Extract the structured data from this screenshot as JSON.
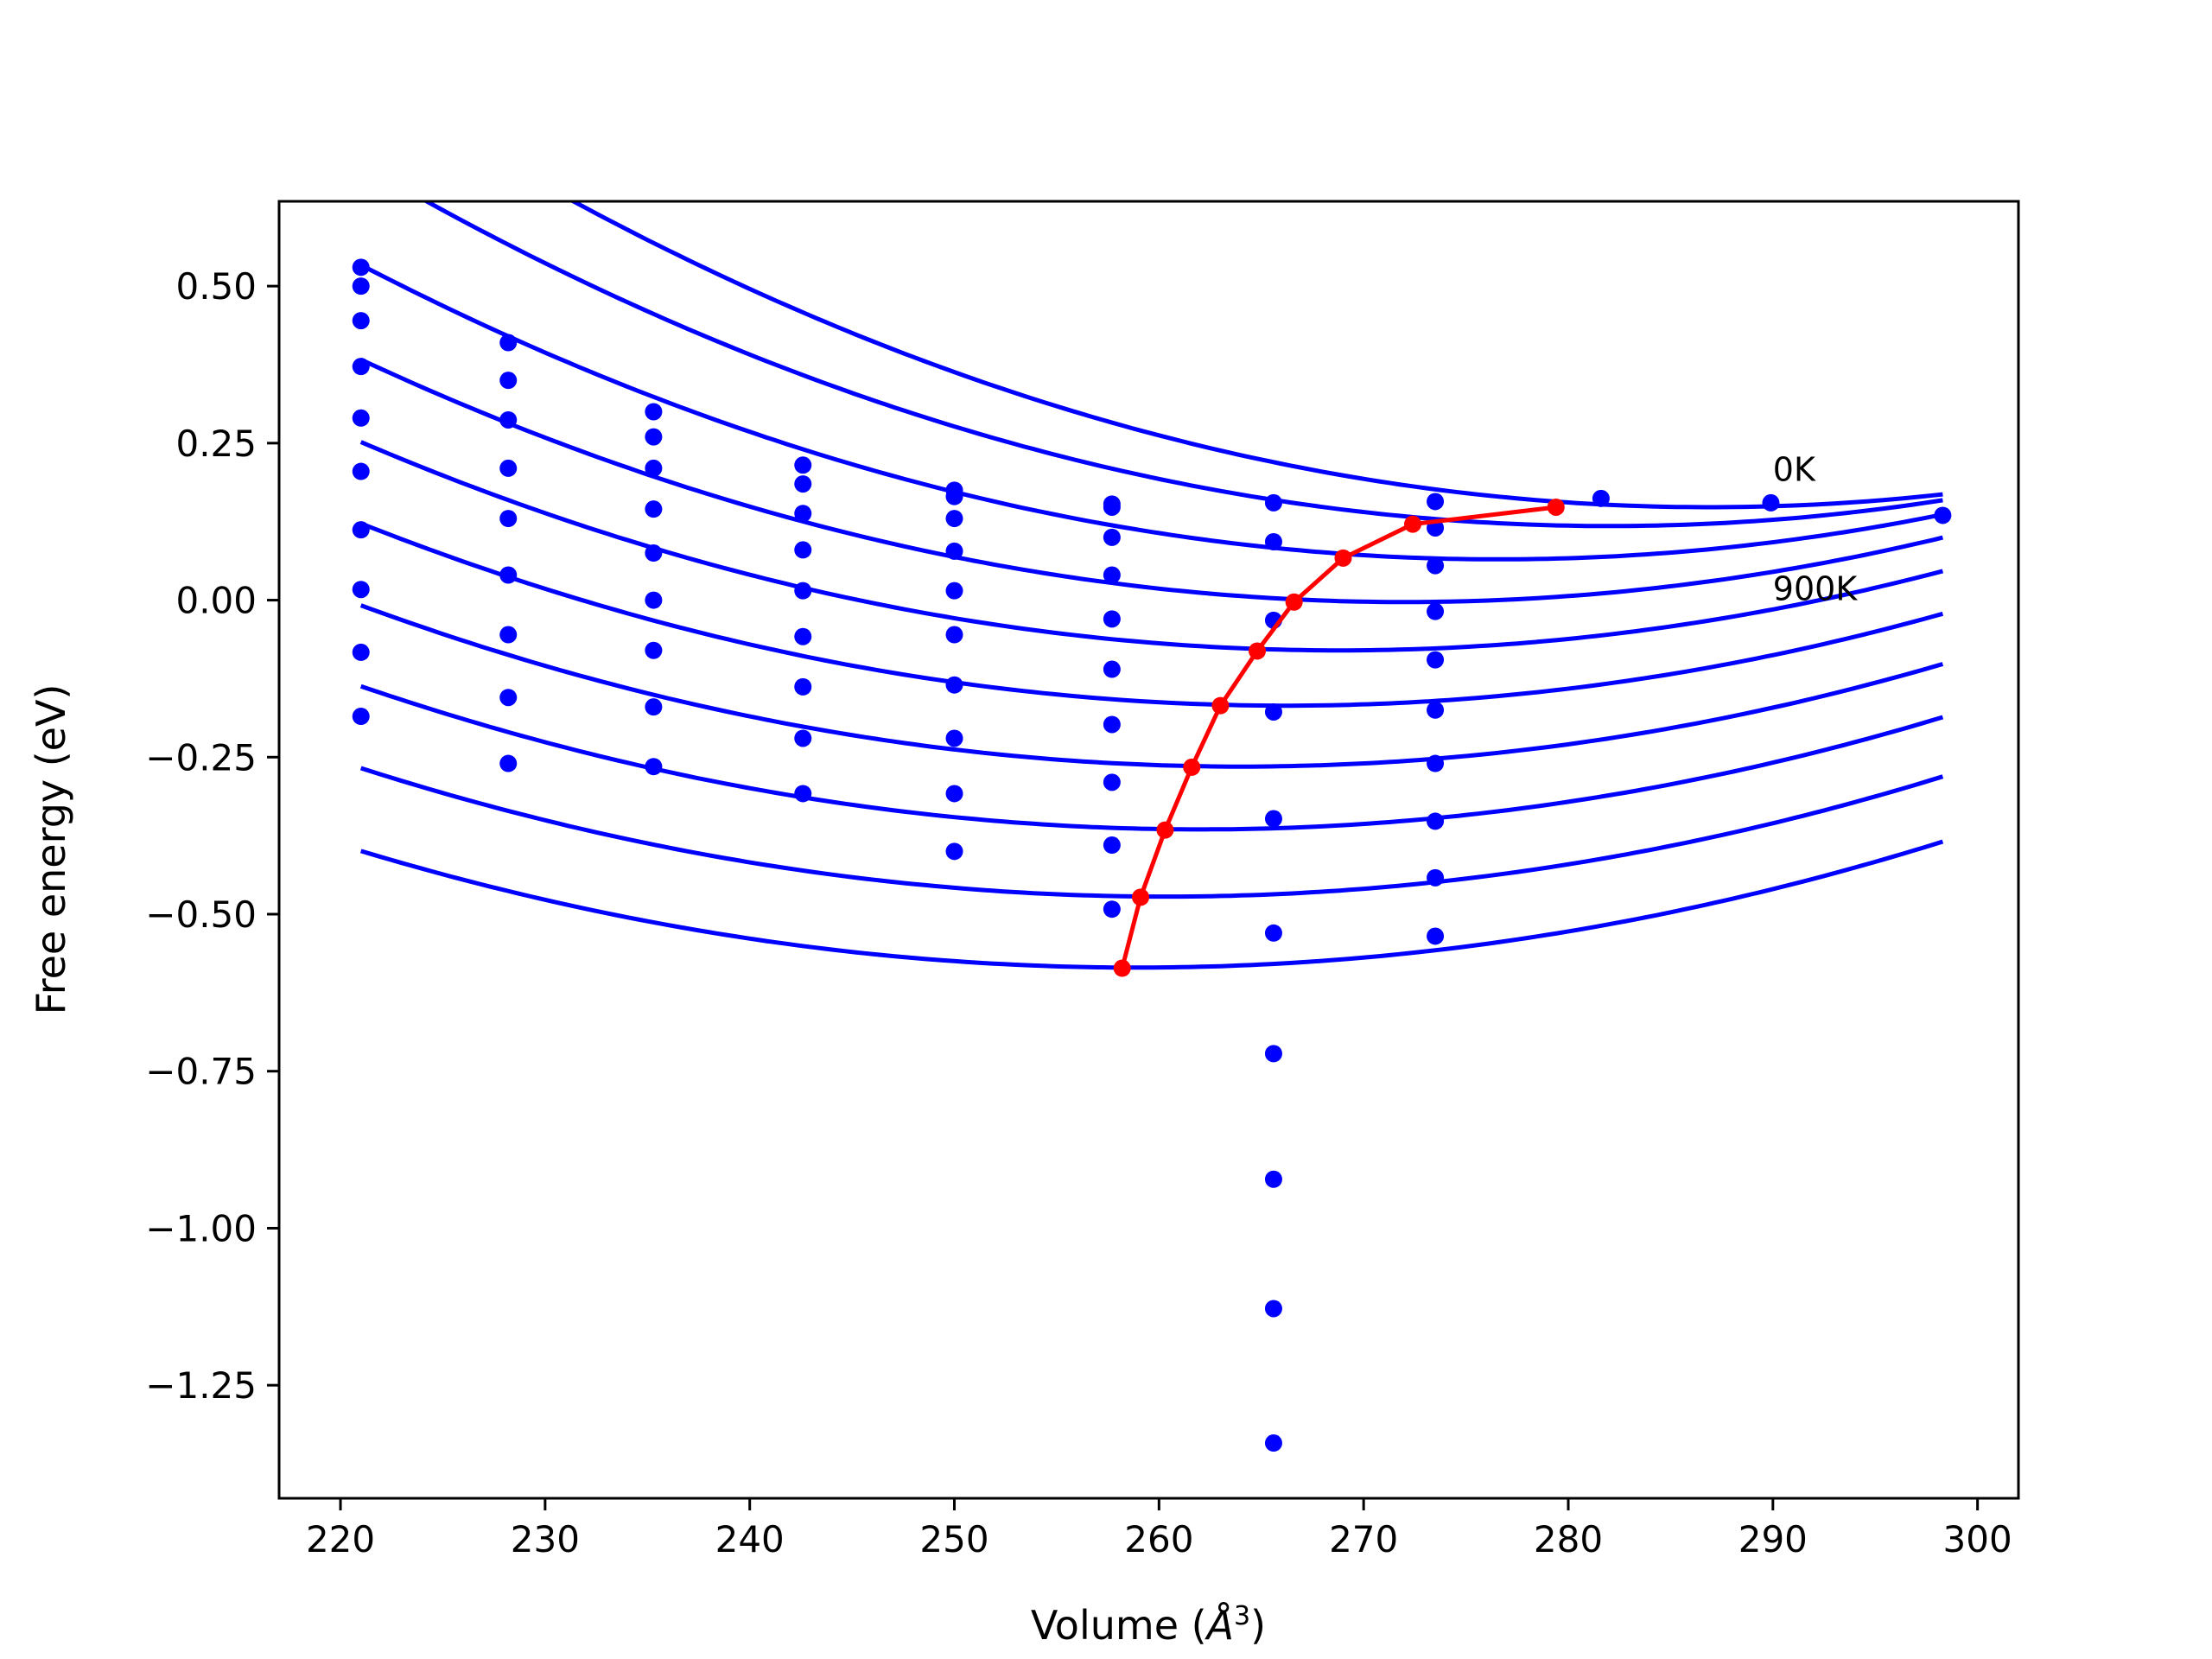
{
  "chart_data": {
    "type": "scatter",
    "xlabel_main": "Volume (",
    "xlabel_symbol": "Å",
    "xlabel_exp": "3",
    "xlabel_end": ")",
    "ylabel": "Free energy (eV)",
    "xlim": [
      217,
      302
    ],
    "ylim": [
      -1.43,
      0.635
    ],
    "xticks": [
      220,
      230,
      240,
      250,
      260,
      270,
      280,
      290,
      300
    ],
    "yticks": [
      0.5,
      0.25,
      0.0,
      -0.25,
      -0.5,
      -0.75,
      -1.0,
      -1.25
    ],
    "ytick_labels": [
      "0.50",
      "0.25",
      "0.00",
      "−0.25",
      "−0.50",
      "−0.75",
      "−1.00",
      "−1.25"
    ],
    "annotations": [
      {
        "text": "0K",
        "x": 290,
        "y": 0.19
      },
      {
        "text": "900K",
        "x": 290,
        "y": 0.0
      }
    ],
    "colors": {
      "fit": "#0000ff",
      "points": "#0000ff",
      "minima": "#ff0000"
    },
    "fit_x_range": [
      221,
      298.3
    ],
    "fit_curves": [
      {
        "a": 0.000158,
        "v0": 286.9,
        "e0": 0.148
      },
      {
        "a": 0.0001548,
        "v0": 282.0,
        "e0": 0.118
      },
      {
        "a": 0.0001516,
        "v0": 276.6,
        "e0": 0.065
      },
      {
        "a": 0.0001484,
        "v0": 272.0,
        "e0": -0.003
      },
      {
        "a": 0.0001452,
        "v0": 268.8,
        "e0": -0.08
      },
      {
        "a": 0.000142,
        "v0": 266.2,
        "e0": -0.168
      },
      {
        "a": 0.0001388,
        "v0": 264.0,
        "e0": -0.265
      },
      {
        "a": 0.0001356,
        "v0": 262.0,
        "e0": -0.365
      },
      {
        "a": 0.0001324,
        "v0": 260.3,
        "e0": -0.472
      },
      {
        "a": 0.0001292,
        "v0": 258.9,
        "e0": -0.585
      }
    ],
    "scatter_points": [
      [
        221,
        0.53
      ],
      [
        221,
        0.5
      ],
      [
        221,
        0.445
      ],
      [
        221,
        0.372
      ],
      [
        221,
        0.29
      ],
      [
        221,
        0.205
      ],
      [
        221,
        0.112
      ],
      [
        221,
        0.017
      ],
      [
        221,
        -0.083
      ],
      [
        221,
        -0.185
      ],
      [
        228.2,
        0.41
      ],
      [
        228.2,
        0.35
      ],
      [
        228.2,
        0.287
      ],
      [
        228.2,
        0.21
      ],
      [
        228.2,
        0.13
      ],
      [
        228.2,
        0.04
      ],
      [
        228.2,
        -0.055
      ],
      [
        228.2,
        -0.155
      ],
      [
        228.2,
        -0.26
      ],
      [
        235.3,
        0.3
      ],
      [
        235.3,
        0.26
      ],
      [
        235.3,
        0.21
      ],
      [
        235.3,
        0.145
      ],
      [
        235.3,
        0.075
      ],
      [
        235.3,
        0.0
      ],
      [
        235.3,
        -0.08
      ],
      [
        235.3,
        -0.17
      ],
      [
        235.3,
        -0.265
      ],
      [
        242.6,
        0.215
      ],
      [
        242.6,
        0.185
      ],
      [
        242.6,
        0.138
      ],
      [
        242.6,
        0.08
      ],
      [
        242.6,
        0.015
      ],
      [
        242.6,
        -0.058
      ],
      [
        242.6,
        -0.138
      ],
      [
        242.6,
        -0.22
      ],
      [
        242.6,
        -0.308
      ],
      [
        250.0,
        0.175
      ],
      [
        250.0,
        0.165
      ],
      [
        250.0,
        0.13
      ],
      [
        250.0,
        0.078
      ],
      [
        250.0,
        0.015
      ],
      [
        250.0,
        -0.055
      ],
      [
        250.0,
        -0.135
      ],
      [
        250.0,
        -0.22
      ],
      [
        250.0,
        -0.308
      ],
      [
        250.0,
        -0.4
      ],
      [
        257.7,
        0.153
      ],
      [
        257.7,
        0.148
      ],
      [
        257.7,
        0.1
      ],
      [
        257.7,
        0.04
      ],
      [
        257.7,
        -0.03
      ],
      [
        257.7,
        -0.11
      ],
      [
        257.7,
        -0.198
      ],
      [
        257.7,
        -0.29
      ],
      [
        257.7,
        -0.39
      ],
      [
        257.7,
        -0.492
      ],
      [
        265.6,
        0.155
      ],
      [
        265.6,
        0.093
      ],
      [
        265.6,
        -0.032
      ],
      [
        265.6,
        -0.178
      ],
      [
        265.6,
        -0.348
      ],
      [
        265.6,
        -0.53
      ],
      [
        265.6,
        -0.722
      ],
      [
        265.6,
        -0.922
      ],
      [
        265.6,
        -1.128
      ],
      [
        265.6,
        -1.342
      ],
      [
        273.5,
        0.157
      ],
      [
        273.5,
        0.115
      ],
      [
        273.5,
        0.055
      ],
      [
        273.5,
        -0.018
      ],
      [
        273.5,
        -0.095
      ],
      [
        273.5,
        -0.175
      ],
      [
        273.5,
        -0.26
      ],
      [
        273.5,
        -0.352
      ],
      [
        273.5,
        -0.442
      ],
      [
        273.5,
        -0.535
      ],
      [
        281.6,
        0.162
      ],
      [
        289.9,
        0.155
      ],
      [
        298.3,
        0.135
      ]
    ],
    "minima_line": [
      [
        279.4,
        0.148
      ],
      [
        272.4,
        0.121
      ],
      [
        269.0,
        0.067
      ],
      [
        266.6,
        -0.003
      ],
      [
        264.8,
        -0.081
      ],
      [
        263.0,
        -0.168
      ],
      [
        261.6,
        -0.266
      ],
      [
        260.3,
        -0.366
      ],
      [
        259.1,
        -0.473
      ],
      [
        258.2,
        -0.586
      ]
    ]
  }
}
